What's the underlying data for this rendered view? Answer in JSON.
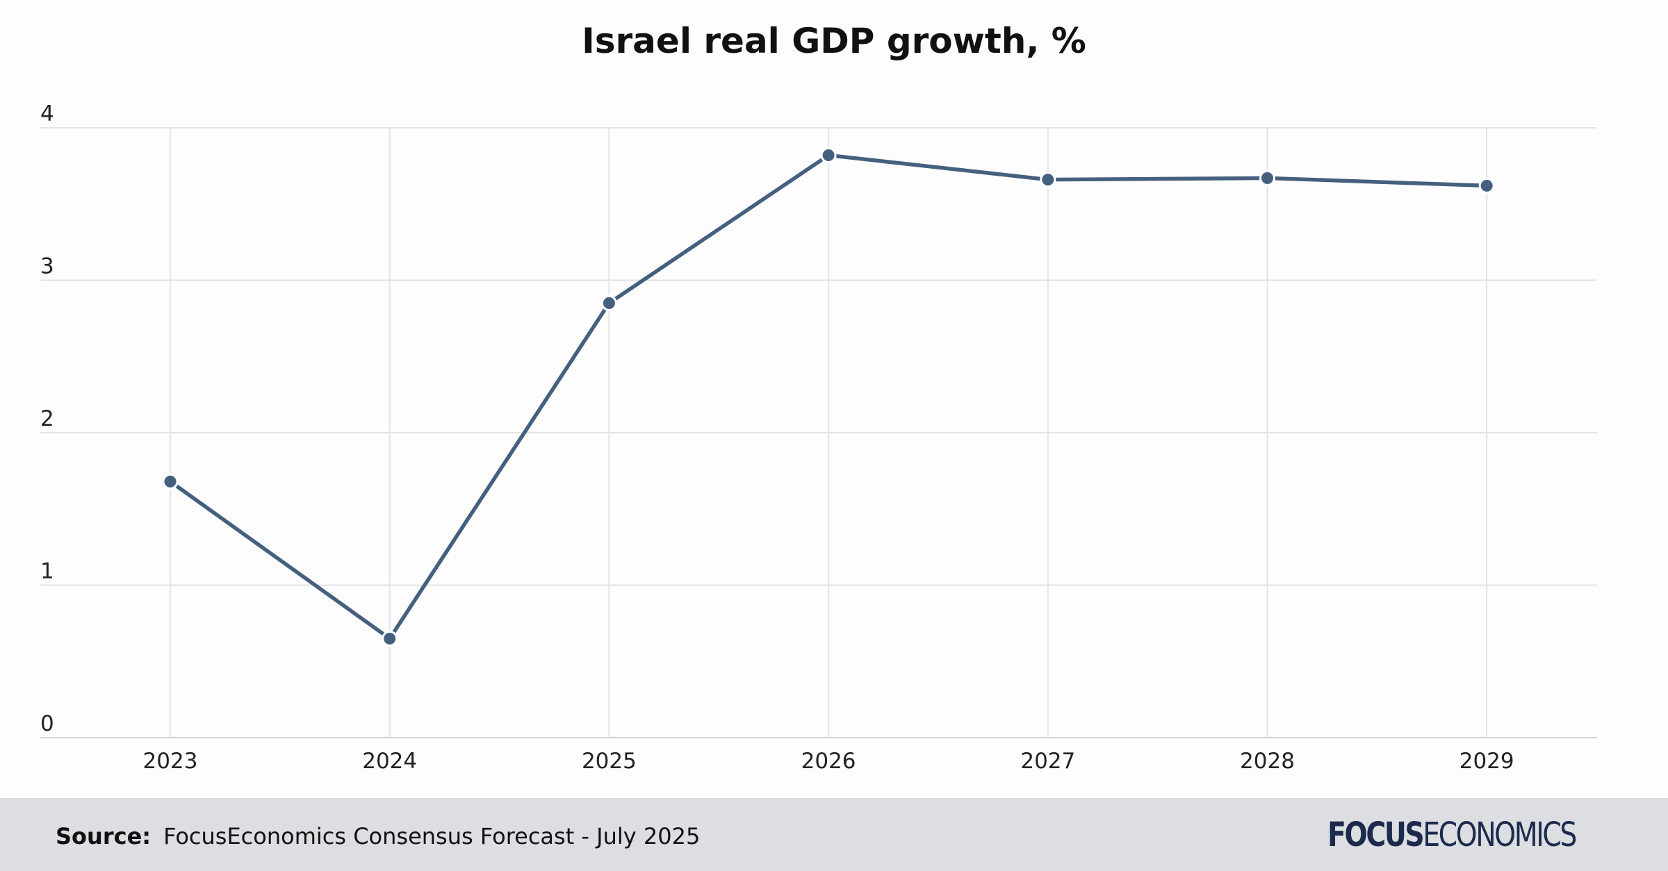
{
  "chart_data": {
    "type": "line",
    "title": "Israel real GDP growth, %",
    "xlabel": "",
    "ylabel": "",
    "categories": [
      "2023",
      "2024",
      "2025",
      "2026",
      "2027",
      "2028",
      "2029"
    ],
    "series": [
      {
        "values": [
          1.68,
          0.65,
          2.85,
          3.82,
          3.66,
          3.67,
          3.62
        ]
      }
    ],
    "ylim": [
      0,
      4
    ],
    "yticks": [
      0,
      1,
      2,
      3,
      4
    ],
    "grid": true,
    "legend": "none",
    "line_color": "#45607f"
  },
  "footer": {
    "source_label": "Source:",
    "source_text": "FocusEconomics Consensus Forecast - July 2025",
    "logo_bold": "FOCUS",
    "logo_light": "ECONOMICS"
  }
}
